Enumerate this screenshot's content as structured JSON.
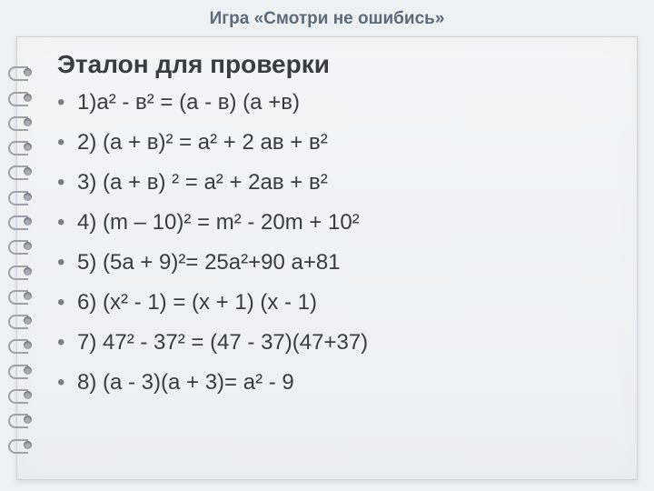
{
  "slide": {
    "title": "Игра «Смотри не ошибись»",
    "title_color": "#5d6a7a",
    "title_fontsize": 19
  },
  "notebook": {
    "background_gradient": [
      "#f5f5f6",
      "#edeef2"
    ],
    "border_color": "#d0d3d8",
    "spiral_ring_count": 16,
    "ring_color": "#9ea1a8",
    "hole_color": "#a9acb4"
  },
  "content": {
    "heading": "Эталон для проверки",
    "heading_fontsize": 28,
    "heading_color": "#3a3c40",
    "item_fontsize": 24,
    "item_color": "#3a3c40",
    "bullet_color": "#7a7d84",
    "items": [
      "1)а² - в² = (а - в) (а +в)",
      "2) (а + в)² = а² + 2 ав + в²",
      "3) (а + в) ² = а² + 2ав + в²",
      "4) (m – 10)² = m² - 20m + 10²",
      "5) (5а + 9)²= 25а²+90 а+81",
      "6) (х² - 1) = (х + 1) (х - 1)",
      "7) 47² - 37² = (47 - 37)(47+37)",
      "8) (а - 3)(а  + 3)= а² - 9"
    ]
  }
}
